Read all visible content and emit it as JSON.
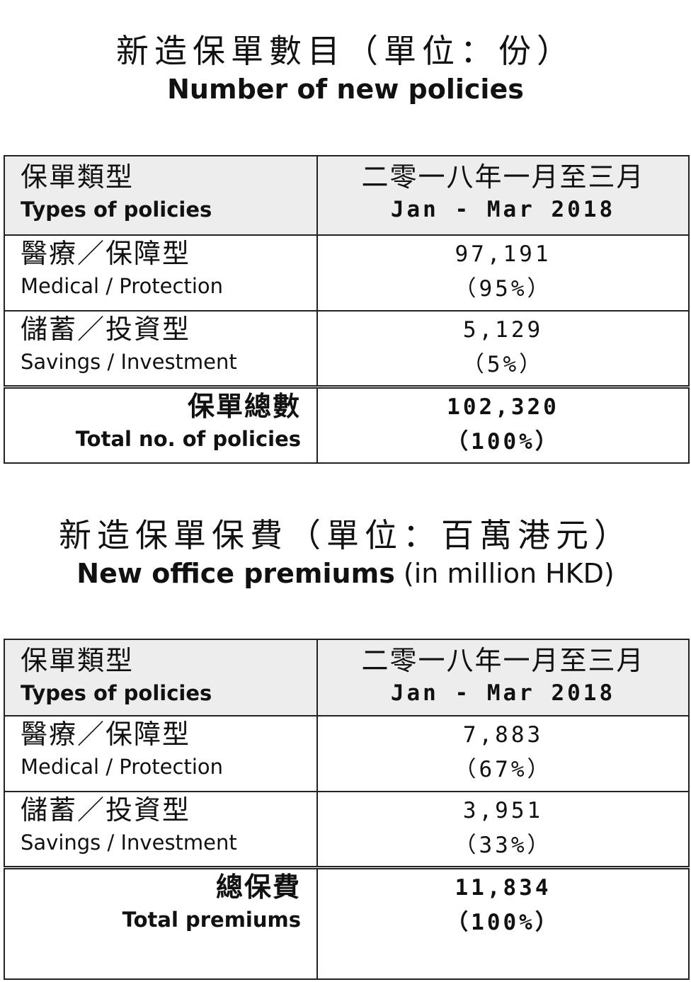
{
  "section1": {
    "title_zh": "新造保單數目（單位：份）",
    "title_en": "Number of new policies",
    "header": {
      "col1_zh": "保單類型",
      "col1_en": "Types of policies",
      "col2_zh": "二零一八年一月至三月",
      "col2_en": "Jan - Mar 2018"
    },
    "rows": [
      {
        "zh": "醫療／保障型",
        "en": "Medical / Protection",
        "value": "97,191",
        "pct": "（95%）"
      },
      {
        "zh": "儲蓄／投資型",
        "en": "Savings / Investment",
        "value": "5,129",
        "pct": "（5%）"
      }
    ],
    "total": {
      "zh": "保單總數",
      "en": "Total no. of policies",
      "value": "102,320",
      "pct": "（100%）"
    }
  },
  "section2": {
    "title_zh": "新造保單保費（單位：百萬港元）",
    "title_en_bold": "New office premiums",
    "title_en_light": " (in million HKD)",
    "header": {
      "col1_zh": "保單類型",
      "col1_en": "Types of policies",
      "col2_zh": "二零一八年一月至三月",
      "col2_en": "Jan - Mar 2018"
    },
    "rows": [
      {
        "zh": "醫療／保障型",
        "en": "Medical / Protection",
        "value": "7,883",
        "pct": "（67%）"
      },
      {
        "zh": "儲蓄／投資型",
        "en": "Savings / Investment",
        "value": "3,951",
        "pct": "（33%）"
      }
    ],
    "total": {
      "zh": "總保費",
      "en": "Total premiums",
      "value": "11,834",
      "pct": "（100%）"
    }
  }
}
